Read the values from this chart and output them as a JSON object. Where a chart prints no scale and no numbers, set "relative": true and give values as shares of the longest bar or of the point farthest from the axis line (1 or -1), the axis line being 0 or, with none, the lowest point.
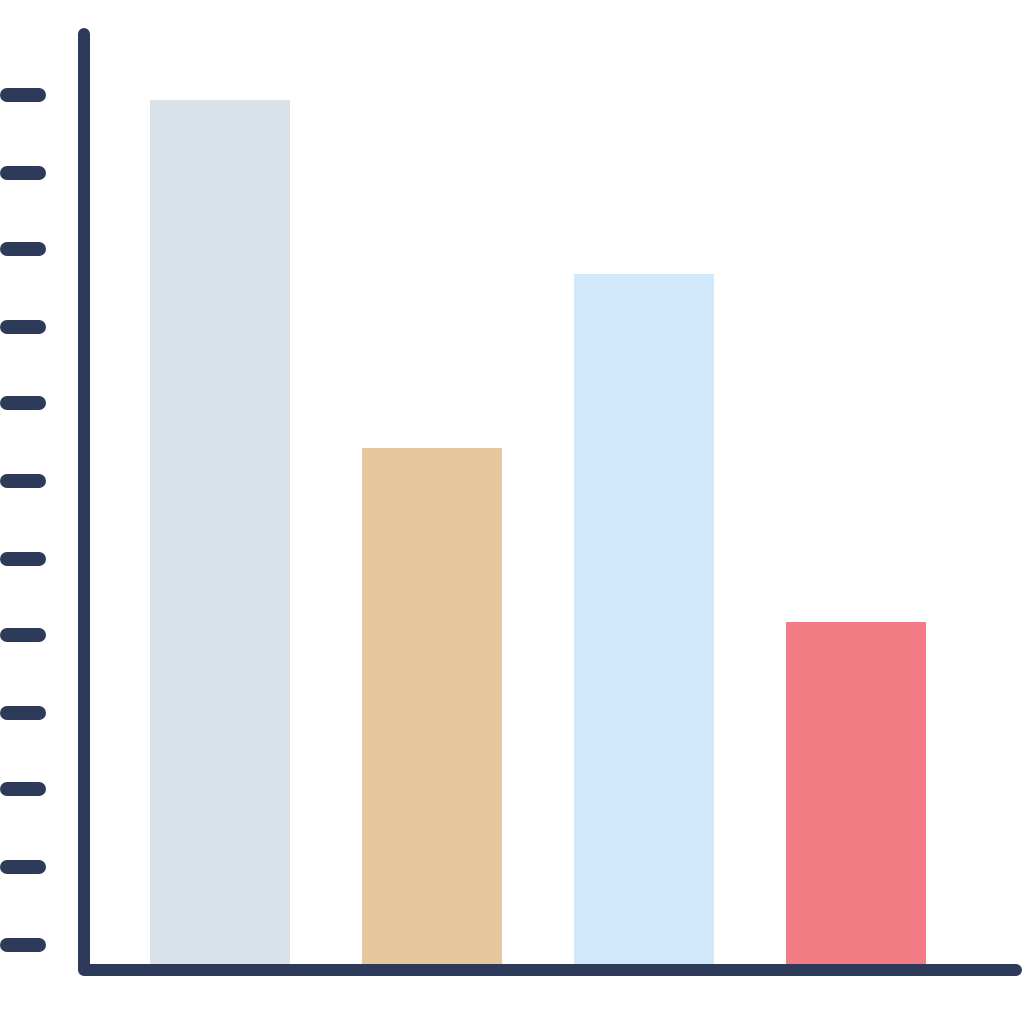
{
  "chart_data": {
    "type": "bar",
    "relative": true,
    "categories": [
      null,
      null,
      null,
      null
    ],
    "values": [
      1,
      0.6,
      0.8,
      0.4
    ],
    "colors": [
      "#d9e2e9",
      "#e6c69c",
      "#d1e8fb",
      "#f27b84"
    ]
  }
}
